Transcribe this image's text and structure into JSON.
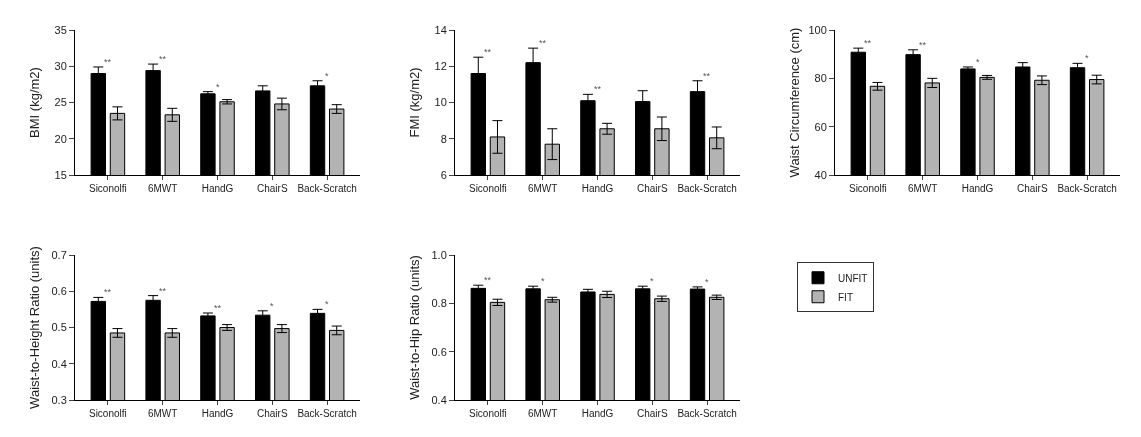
{
  "chart_data": [
    {
      "type": "bar",
      "ylabel": "BMI (kg/m2)",
      "categories": [
        "Siconolfi",
        "6MWT",
        "HandG",
        "ChairS",
        "Back-Scratch"
      ],
      "ylim": [
        15,
        35
      ],
      "yticks": [
        15,
        20,
        25,
        30,
        35
      ],
      "grid": false,
      "legend": false,
      "series": [
        {
          "color": "#000000",
          "values": [
            29.0,
            29.4,
            26.2,
            26.6,
            27.3
          ],
          "errors": [
            0.9,
            0.9,
            0.3,
            0.7,
            0.7
          ]
        },
        {
          "color": "#b3b3b3",
          "values": [
            23.5,
            23.3,
            25.1,
            24.8,
            24.1
          ],
          "errors": [
            0.9,
            0.9,
            0.3,
            0.8,
            0.6
          ]
        }
      ],
      "annotations": [
        {
          "text": "**",
          "x": "Siconolfi",
          "y": 29.9
        },
        {
          "text": "**",
          "x": "6MWT",
          "y": 30.3
        },
        {
          "text": "*",
          "x": "HandG",
          "y": 26.5
        },
        {
          "text": "*",
          "x": "Back-Scratch",
          "y": 28.0
        }
      ]
    },
    {
      "type": "bar",
      "ylabel": "FMI (kg/m2)",
      "categories": [
        "Siconolfi",
        "6MWT",
        "HandG",
        "ChairS",
        "Back-Scratch"
      ],
      "ylim": [
        6,
        14
      ],
      "yticks": [
        6,
        8,
        10,
        12,
        14
      ],
      "grid": false,
      "legend": false,
      "series": [
        {
          "color": "#000000",
          "values": [
            11.6,
            12.2,
            10.1,
            10.05,
            10.6
          ],
          "errors": [
            0.9,
            0.8,
            0.35,
            0.6,
            0.6
          ]
        },
        {
          "color": "#b3b3b3",
          "values": [
            8.1,
            7.7,
            8.55,
            8.55,
            8.05
          ],
          "errors": [
            0.9,
            0.85,
            0.3,
            0.65,
            0.6
          ]
        }
      ],
      "annotations": [
        {
          "text": "**",
          "x": "Siconolfi",
          "y": 12.5
        },
        {
          "text": "**",
          "x": "6MWT",
          "y": 13.0
        },
        {
          "text": "**",
          "x": "HandG",
          "y": 10.45
        },
        {
          "text": "**",
          "x": "Back-Scratch",
          "y": 11.2
        }
      ]
    },
    {
      "type": "bar",
      "ylabel": "Waist Circumference (cm)",
      "categories": [
        "Siconolfi",
        "6MWT",
        "HandG",
        "ChairS",
        "Back-Scratch"
      ],
      "ylim": [
        40,
        100
      ],
      "yticks": [
        40,
        60,
        80,
        100
      ],
      "grid": false,
      "legend": false,
      "series": [
        {
          "color": "#000000",
          "values": [
            90.8,
            89.8,
            83.9,
            84.7,
            84.4
          ],
          "errors": [
            1.7,
            2.0,
            0.8,
            1.8,
            1.8
          ]
        },
        {
          "color": "#b3b3b3",
          "values": [
            76.7,
            78.1,
            80.4,
            79.2,
            79.5
          ],
          "errors": [
            1.6,
            1.9,
            0.8,
            1.8,
            1.8
          ]
        }
      ],
      "annotations": [
        {
          "text": "**",
          "x": "Siconolfi",
          "y": 92.5
        },
        {
          "text": "**",
          "x": "6MWT",
          "y": 91.8
        },
        {
          "text": "*",
          "x": "HandG",
          "y": 84.7
        },
        {
          "text": "*",
          "x": "Back-Scratch",
          "y": 86.2
        }
      ]
    },
    {
      "type": "bar",
      "ylabel": "Waist-to-Height Ratio (units)",
      "categories": [
        "Siconolfi",
        "6MWT",
        "HandG",
        "ChairS",
        "Back-Scratch"
      ],
      "ylim": [
        0.3,
        0.7
      ],
      "yticks": [
        0.3,
        0.4,
        0.5,
        0.6,
        0.7
      ],
      "grid": false,
      "legend": false,
      "series": [
        {
          "color": "#000000",
          "values": [
            0.572,
            0.575,
            0.532,
            0.534,
            0.539
          ],
          "errors": [
            0.011,
            0.013,
            0.008,
            0.012,
            0.011
          ]
        },
        {
          "color": "#b3b3b3",
          "values": [
            0.485,
            0.485,
            0.5,
            0.497,
            0.492
          ],
          "errors": [
            0.012,
            0.012,
            0.008,
            0.011,
            0.012
          ]
        }
      ],
      "annotations": [
        {
          "text": "**",
          "x": "Siconolfi",
          "y": 0.583
        },
        {
          "text": "**",
          "x": "6MWT",
          "y": 0.588
        },
        {
          "text": "**",
          "x": "HandG",
          "y": 0.54
        },
        {
          "text": "*",
          "x": "ChairS",
          "y": 0.546
        },
        {
          "text": "*",
          "x": "Back-Scratch",
          "y": 0.55
        }
      ]
    },
    {
      "type": "bar",
      "ylabel": "Waist-to-Hip Ratio (units)",
      "categories": [
        "Siconolfi",
        "6MWT",
        "HandG",
        "ChairS",
        "Back-Scratch"
      ],
      "ylim": [
        0.4,
        1.0
      ],
      "yticks": [
        0.4,
        0.6,
        0.8,
        {
          "value": 1.0,
          "label": "1.0"
        }
      ],
      "grid": false,
      "legend": "right",
      "series": [
        {
          "name": "UNFIT",
          "color": "#000000",
          "values": [
            0.862,
            0.86,
            0.847,
            0.86,
            0.859
          ],
          "errors": [
            0.013,
            0.011,
            0.011,
            0.011,
            0.009
          ]
        },
        {
          "name": "FIT",
          "color": "#b3b3b3",
          "values": [
            0.804,
            0.815,
            0.837,
            0.819,
            0.825
          ],
          "errors": [
            0.013,
            0.01,
            0.013,
            0.011,
            0.009
          ]
        }
      ],
      "annotations": [
        {
          "text": "**",
          "x": "Siconolfi",
          "y": 0.875
        },
        {
          "text": "*",
          "x": "6MWT",
          "y": 0.871
        },
        {
          "text": "*",
          "x": "ChairS",
          "y": 0.871
        },
        {
          "text": "*",
          "x": "Back-Scratch",
          "y": 0.868
        }
      ]
    }
  ]
}
